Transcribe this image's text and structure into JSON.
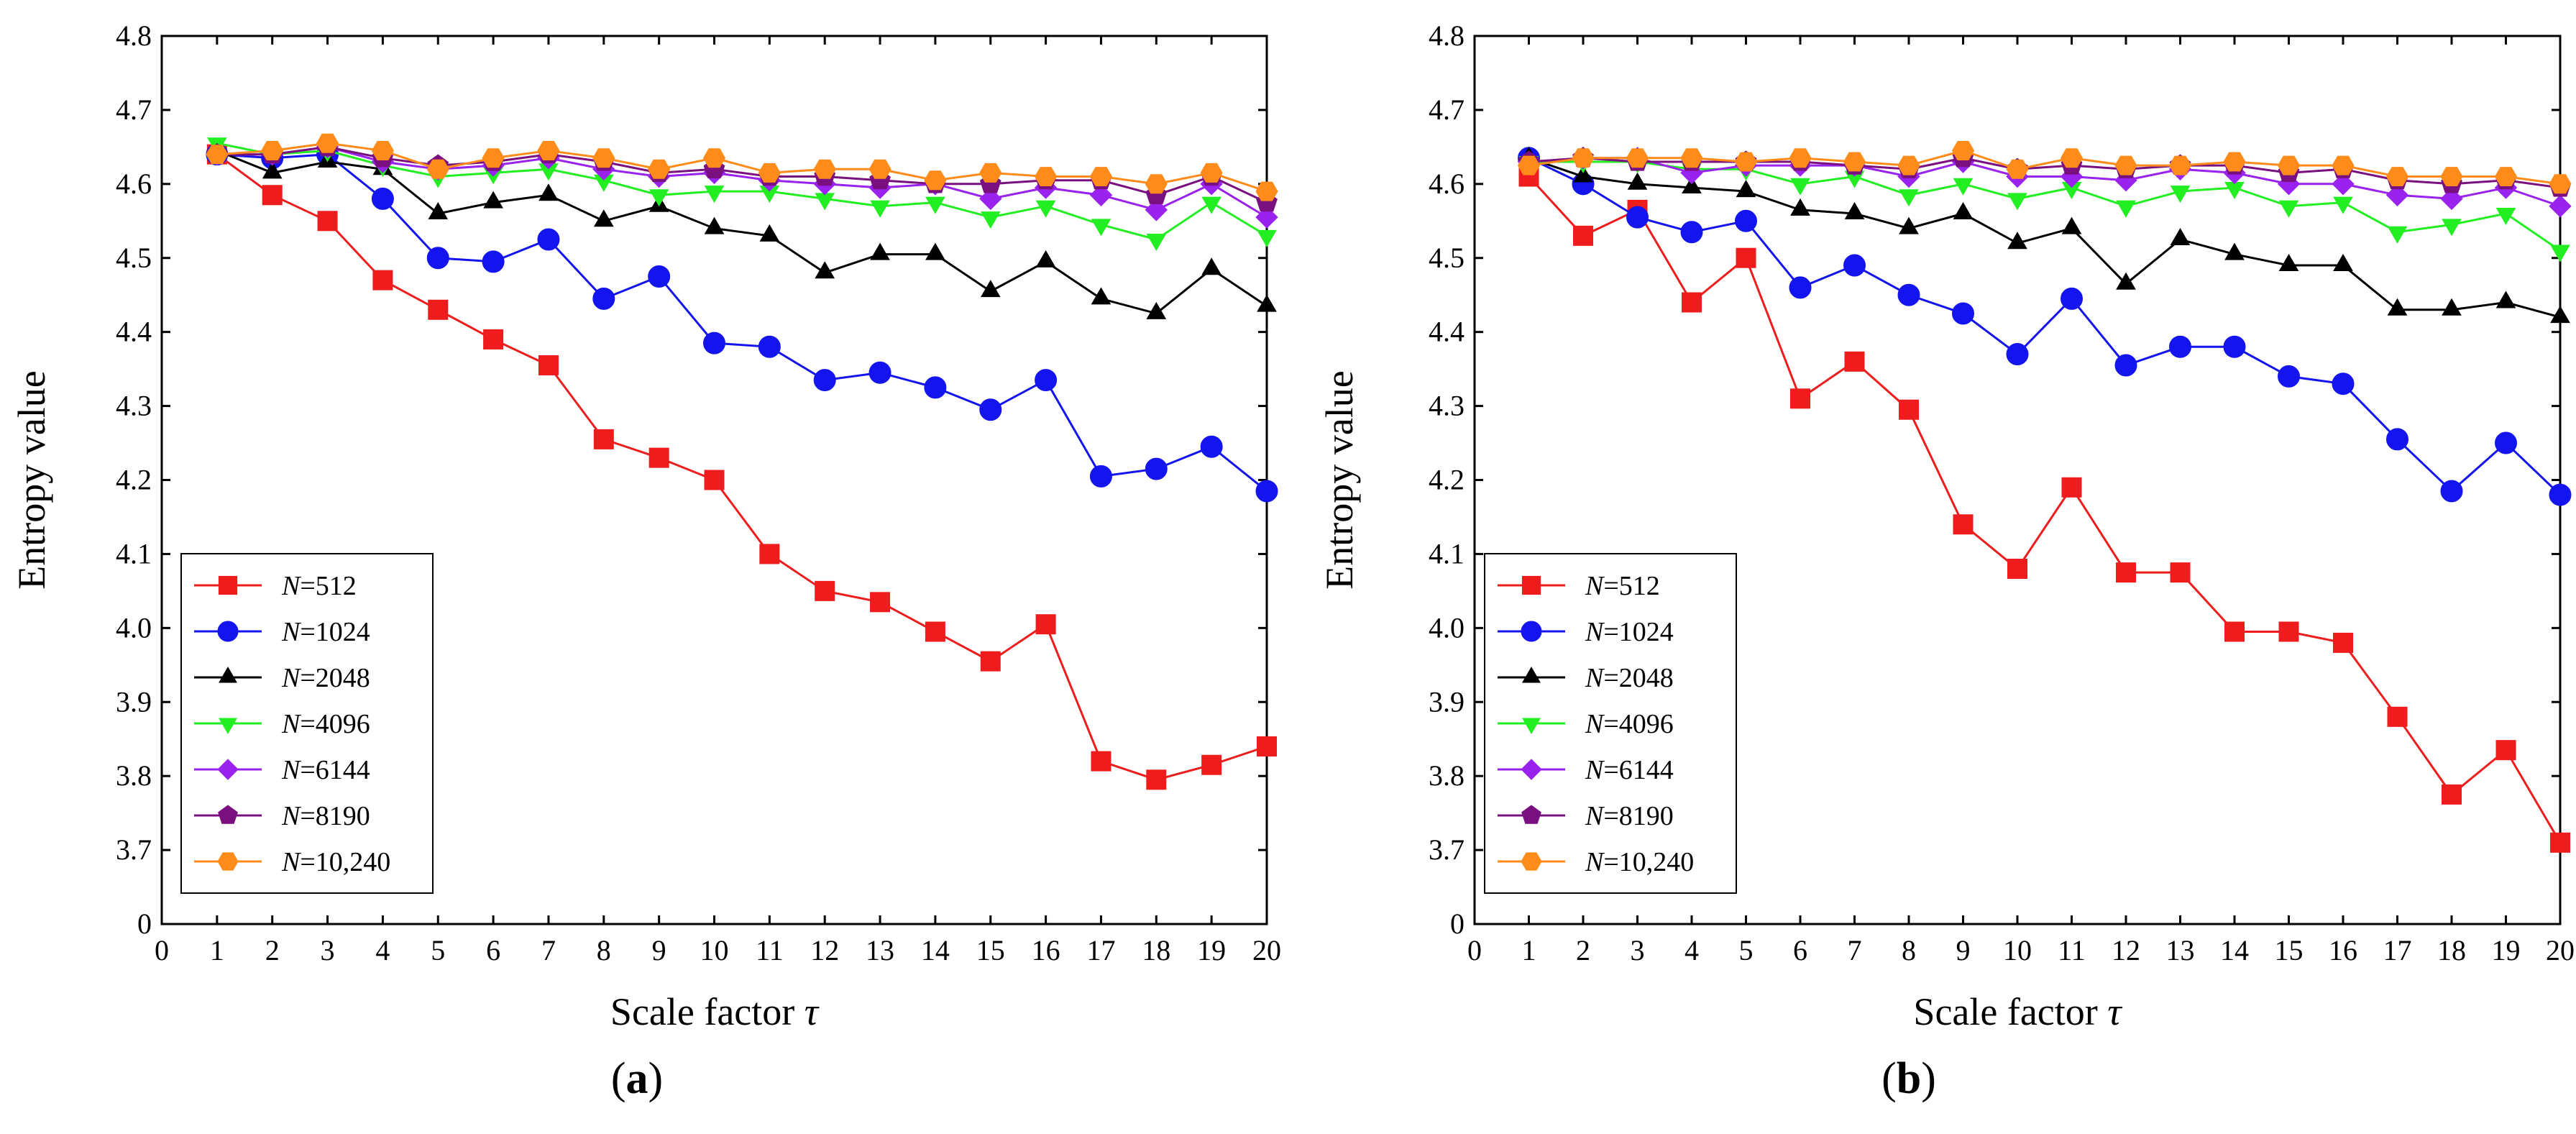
{
  "chart_data": [
    {
      "type": "line",
      "panel_label": "a",
      "ylabel": "Entropy value",
      "xlabel": "Scale factor",
      "xlabel_symbol": "τ",
      "xlim": [
        0,
        20
      ],
      "ylim": [
        0,
        4.8
      ],
      "y_axis_break": true,
      "x_ticks": [
        0,
        1,
        2,
        3,
        4,
        5,
        6,
        7,
        8,
        9,
        10,
        11,
        12,
        13,
        14,
        15,
        16,
        17,
        18,
        19,
        20
      ],
      "y_ticks": [
        "0",
        "3.7",
        "3.8",
        "3.9",
        "4.0",
        "4.1",
        "4.2",
        "4.3",
        "4.4",
        "4.5",
        "4.6",
        "4.7",
        "4.8"
      ],
      "legend_position": "bottom-left",
      "x": [
        1,
        2,
        3,
        4,
        5,
        6,
        7,
        8,
        9,
        10,
        11,
        12,
        13,
        14,
        15,
        16,
        17,
        18,
        19,
        20
      ],
      "series": [
        {
          "name": "N=512",
          "color": "#ee1c1c",
          "marker": "square",
          "values": [
            4.64,
            4.585,
            4.55,
            4.47,
            4.43,
            4.39,
            4.355,
            4.255,
            4.23,
            4.2,
            4.1,
            4.05,
            4.035,
            3.995,
            3.955,
            4.005,
            3.82,
            3.795,
            3.815,
            3.84
          ]
        },
        {
          "name": "N=1024",
          "color": "#1414ee",
          "marker": "circle",
          "values": [
            4.64,
            4.635,
            4.64,
            4.58,
            4.5,
            4.495,
            4.525,
            4.445,
            4.475,
            4.385,
            4.38,
            4.335,
            4.345,
            4.325,
            4.295,
            4.335,
            4.205,
            4.215,
            4.245,
            4.185
          ]
        },
        {
          "name": "N=2048",
          "color": "#000000",
          "marker": "triangle-up",
          "values": [
            4.645,
            4.615,
            4.63,
            4.62,
            4.56,
            4.575,
            4.585,
            4.55,
            4.57,
            4.54,
            4.53,
            4.48,
            4.505,
            4.505,
            4.455,
            4.495,
            4.445,
            4.425,
            4.485,
            4.435
          ]
        },
        {
          "name": "N=4096",
          "color": "#22ee22",
          "marker": "triangle-down",
          "values": [
            4.655,
            4.64,
            4.645,
            4.625,
            4.61,
            4.615,
            4.62,
            4.605,
            4.585,
            4.59,
            4.59,
            4.58,
            4.57,
            4.575,
            4.555,
            4.57,
            4.545,
            4.525,
            4.575,
            4.53
          ]
        },
        {
          "name": "N=6144",
          "color": "#9922ee",
          "marker": "diamond",
          "values": [
            4.64,
            4.64,
            4.65,
            4.63,
            4.62,
            4.625,
            4.635,
            4.62,
            4.61,
            4.615,
            4.605,
            4.6,
            4.595,
            4.6,
            4.58,
            4.595,
            4.585,
            4.565,
            4.6,
            4.555
          ]
        },
        {
          "name": "N=8190",
          "color": "#7a1080",
          "marker": "pentagon",
          "values": [
            4.64,
            4.64,
            4.65,
            4.635,
            4.625,
            4.63,
            4.64,
            4.63,
            4.615,
            4.62,
            4.61,
            4.61,
            4.605,
            4.6,
            4.6,
            4.605,
            4.605,
            4.585,
            4.61,
            4.575
          ]
        },
        {
          "name": "N=10,240",
          "color": "#ff8c1a",
          "marker": "hexagon",
          "values": [
            4.64,
            4.645,
            4.655,
            4.645,
            4.62,
            4.635,
            4.645,
            4.635,
            4.62,
            4.635,
            4.615,
            4.62,
            4.62,
            4.605,
            4.615,
            4.61,
            4.61,
            4.6,
            4.615,
            4.59
          ]
        }
      ]
    },
    {
      "type": "line",
      "panel_label": "b",
      "ylabel": "Entropy value",
      "xlabel": "Scale factor",
      "xlabel_symbol": "τ",
      "xlim": [
        0,
        20
      ],
      "ylim": [
        0,
        4.8
      ],
      "y_axis_break": true,
      "x_ticks": [
        0,
        1,
        2,
        3,
        4,
        5,
        6,
        7,
        8,
        9,
        10,
        11,
        12,
        13,
        14,
        15,
        16,
        17,
        18,
        19,
        20
      ],
      "y_ticks": [
        "0",
        "3.7",
        "3.8",
        "3.9",
        "4.0",
        "4.1",
        "4.2",
        "4.3",
        "4.4",
        "4.5",
        "4.6",
        "4.7",
        "4.8"
      ],
      "legend_position": "bottom-left",
      "x": [
        1,
        2,
        3,
        4,
        5,
        6,
        7,
        8,
        9,
        10,
        11,
        12,
        13,
        14,
        15,
        16,
        17,
        18,
        19,
        20
      ],
      "series": [
        {
          "name": "N=512",
          "color": "#ee1c1c",
          "marker": "square",
          "values": [
            4.61,
            4.53,
            4.565,
            4.44,
            4.5,
            4.31,
            4.36,
            4.295,
            4.14,
            4.08,
            4.19,
            4.075,
            4.075,
            3.995,
            3.995,
            3.98,
            3.88,
            3.775,
            3.835,
            3.71
          ]
        },
        {
          "name": "N=1024",
          "color": "#1414ee",
          "marker": "circle",
          "values": [
            4.635,
            4.6,
            4.555,
            4.535,
            4.55,
            4.46,
            4.49,
            4.45,
            4.425,
            4.37,
            4.445,
            4.355,
            4.38,
            4.38,
            4.34,
            4.33,
            4.255,
            4.185,
            4.25,
            4.18
          ]
        },
        {
          "name": "N=2048",
          "color": "#000000",
          "marker": "triangle-up",
          "values": [
            4.635,
            4.61,
            4.6,
            4.595,
            4.59,
            4.565,
            4.56,
            4.54,
            4.56,
            4.52,
            4.54,
            4.465,
            4.525,
            4.505,
            4.49,
            4.49,
            4.43,
            4.43,
            4.44,
            4.42
          ]
        },
        {
          "name": "N=4096",
          "color": "#22ee22",
          "marker": "triangle-down",
          "values": [
            4.63,
            4.63,
            4.63,
            4.62,
            4.62,
            4.6,
            4.61,
            4.585,
            4.6,
            4.58,
            4.595,
            4.57,
            4.59,
            4.595,
            4.57,
            4.575,
            4.535,
            4.545,
            4.56,
            4.51
          ]
        },
        {
          "name": "N=6144",
          "color": "#9922ee",
          "marker": "diamond",
          "values": [
            4.63,
            4.635,
            4.635,
            4.615,
            4.625,
            4.625,
            4.625,
            4.61,
            4.63,
            4.61,
            4.61,
            4.605,
            4.62,
            4.615,
            4.6,
            4.6,
            4.585,
            4.58,
            4.595,
            4.57
          ]
        },
        {
          "name": "N=8190",
          "color": "#7a1080",
          "marker": "pentagon",
          "values": [
            4.63,
            4.635,
            4.63,
            4.63,
            4.63,
            4.63,
            4.625,
            4.62,
            4.635,
            4.62,
            4.625,
            4.62,
            4.625,
            4.625,
            4.615,
            4.62,
            4.605,
            4.6,
            4.605,
            4.595
          ]
        },
        {
          "name": "N=10,240",
          "color": "#ff8c1a",
          "marker": "hexagon",
          "values": [
            4.625,
            4.635,
            4.635,
            4.635,
            4.63,
            4.635,
            4.63,
            4.625,
            4.645,
            4.62,
            4.635,
            4.625,
            4.625,
            4.63,
            4.625,
            4.625,
            4.61,
            4.61,
            4.61,
            4.6
          ]
        }
      ]
    }
  ]
}
